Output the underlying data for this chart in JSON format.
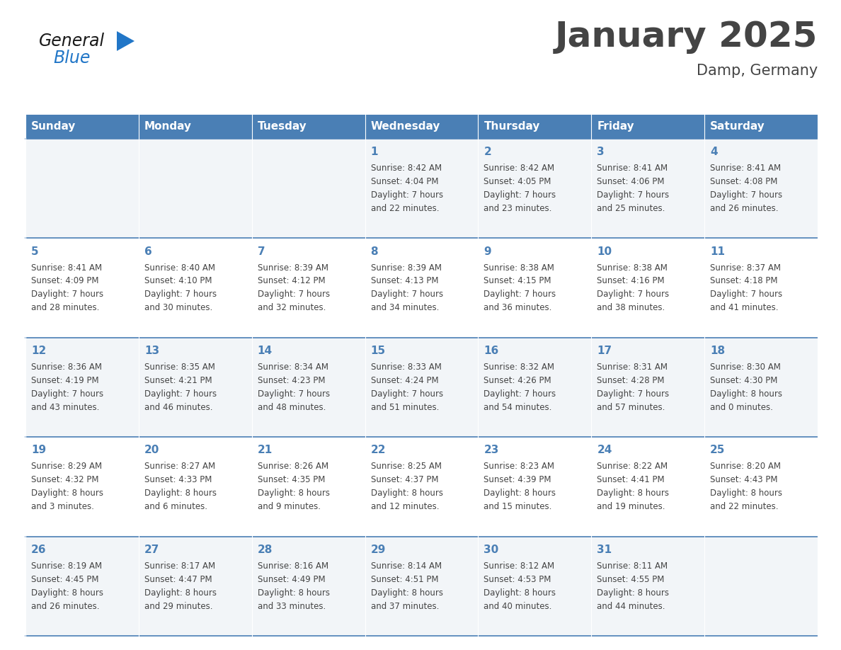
{
  "title": "January 2025",
  "subtitle": "Damp, Germany",
  "days_of_week": [
    "Sunday",
    "Monday",
    "Tuesday",
    "Wednesday",
    "Thursday",
    "Friday",
    "Saturday"
  ],
  "header_bg": "#4a7fb5",
  "header_text": "#ffffff",
  "row_bg_light": "#f2f5f8",
  "row_bg_white": "#ffffff",
  "border_color": "#4a7fb5",
  "day_number_color": "#4a7fb5",
  "text_color": "#444444",
  "background_color": "#ffffff",
  "logo_general_color": "#1a1a1a",
  "logo_blue_color": "#2176c7",
  "title_fontsize": 36,
  "subtitle_fontsize": 15,
  "header_fontsize": 11,
  "day_num_fontsize": 11,
  "info_fontsize": 8.5,
  "weeks": [
    [
      {
        "day": "",
        "info": ""
      },
      {
        "day": "",
        "info": ""
      },
      {
        "day": "",
        "info": ""
      },
      {
        "day": "1",
        "info": "Sunrise: 8:42 AM\nSunset: 4:04 PM\nDaylight: 7 hours\nand 22 minutes."
      },
      {
        "day": "2",
        "info": "Sunrise: 8:42 AM\nSunset: 4:05 PM\nDaylight: 7 hours\nand 23 minutes."
      },
      {
        "day": "3",
        "info": "Sunrise: 8:41 AM\nSunset: 4:06 PM\nDaylight: 7 hours\nand 25 minutes."
      },
      {
        "day": "4",
        "info": "Sunrise: 8:41 AM\nSunset: 4:08 PM\nDaylight: 7 hours\nand 26 minutes."
      }
    ],
    [
      {
        "day": "5",
        "info": "Sunrise: 8:41 AM\nSunset: 4:09 PM\nDaylight: 7 hours\nand 28 minutes."
      },
      {
        "day": "6",
        "info": "Sunrise: 8:40 AM\nSunset: 4:10 PM\nDaylight: 7 hours\nand 30 minutes."
      },
      {
        "day": "7",
        "info": "Sunrise: 8:39 AM\nSunset: 4:12 PM\nDaylight: 7 hours\nand 32 minutes."
      },
      {
        "day": "8",
        "info": "Sunrise: 8:39 AM\nSunset: 4:13 PM\nDaylight: 7 hours\nand 34 minutes."
      },
      {
        "day": "9",
        "info": "Sunrise: 8:38 AM\nSunset: 4:15 PM\nDaylight: 7 hours\nand 36 minutes."
      },
      {
        "day": "10",
        "info": "Sunrise: 8:38 AM\nSunset: 4:16 PM\nDaylight: 7 hours\nand 38 minutes."
      },
      {
        "day": "11",
        "info": "Sunrise: 8:37 AM\nSunset: 4:18 PM\nDaylight: 7 hours\nand 41 minutes."
      }
    ],
    [
      {
        "day": "12",
        "info": "Sunrise: 8:36 AM\nSunset: 4:19 PM\nDaylight: 7 hours\nand 43 minutes."
      },
      {
        "day": "13",
        "info": "Sunrise: 8:35 AM\nSunset: 4:21 PM\nDaylight: 7 hours\nand 46 minutes."
      },
      {
        "day": "14",
        "info": "Sunrise: 8:34 AM\nSunset: 4:23 PM\nDaylight: 7 hours\nand 48 minutes."
      },
      {
        "day": "15",
        "info": "Sunrise: 8:33 AM\nSunset: 4:24 PM\nDaylight: 7 hours\nand 51 minutes."
      },
      {
        "day": "16",
        "info": "Sunrise: 8:32 AM\nSunset: 4:26 PM\nDaylight: 7 hours\nand 54 minutes."
      },
      {
        "day": "17",
        "info": "Sunrise: 8:31 AM\nSunset: 4:28 PM\nDaylight: 7 hours\nand 57 minutes."
      },
      {
        "day": "18",
        "info": "Sunrise: 8:30 AM\nSunset: 4:30 PM\nDaylight: 8 hours\nand 0 minutes."
      }
    ],
    [
      {
        "day": "19",
        "info": "Sunrise: 8:29 AM\nSunset: 4:32 PM\nDaylight: 8 hours\nand 3 minutes."
      },
      {
        "day": "20",
        "info": "Sunrise: 8:27 AM\nSunset: 4:33 PM\nDaylight: 8 hours\nand 6 minutes."
      },
      {
        "day": "21",
        "info": "Sunrise: 8:26 AM\nSunset: 4:35 PM\nDaylight: 8 hours\nand 9 minutes."
      },
      {
        "day": "22",
        "info": "Sunrise: 8:25 AM\nSunset: 4:37 PM\nDaylight: 8 hours\nand 12 minutes."
      },
      {
        "day": "23",
        "info": "Sunrise: 8:23 AM\nSunset: 4:39 PM\nDaylight: 8 hours\nand 15 minutes."
      },
      {
        "day": "24",
        "info": "Sunrise: 8:22 AM\nSunset: 4:41 PM\nDaylight: 8 hours\nand 19 minutes."
      },
      {
        "day": "25",
        "info": "Sunrise: 8:20 AM\nSunset: 4:43 PM\nDaylight: 8 hours\nand 22 minutes."
      }
    ],
    [
      {
        "day": "26",
        "info": "Sunrise: 8:19 AM\nSunset: 4:45 PM\nDaylight: 8 hours\nand 26 minutes."
      },
      {
        "day": "27",
        "info": "Sunrise: 8:17 AM\nSunset: 4:47 PM\nDaylight: 8 hours\nand 29 minutes."
      },
      {
        "day": "28",
        "info": "Sunrise: 8:16 AM\nSunset: 4:49 PM\nDaylight: 8 hours\nand 33 minutes."
      },
      {
        "day": "29",
        "info": "Sunrise: 8:14 AM\nSunset: 4:51 PM\nDaylight: 8 hours\nand 37 minutes."
      },
      {
        "day": "30",
        "info": "Sunrise: 8:12 AM\nSunset: 4:53 PM\nDaylight: 8 hours\nand 40 minutes."
      },
      {
        "day": "31",
        "info": "Sunrise: 8:11 AM\nSunset: 4:55 PM\nDaylight: 8 hours\nand 44 minutes."
      },
      {
        "day": "",
        "info": ""
      }
    ]
  ]
}
